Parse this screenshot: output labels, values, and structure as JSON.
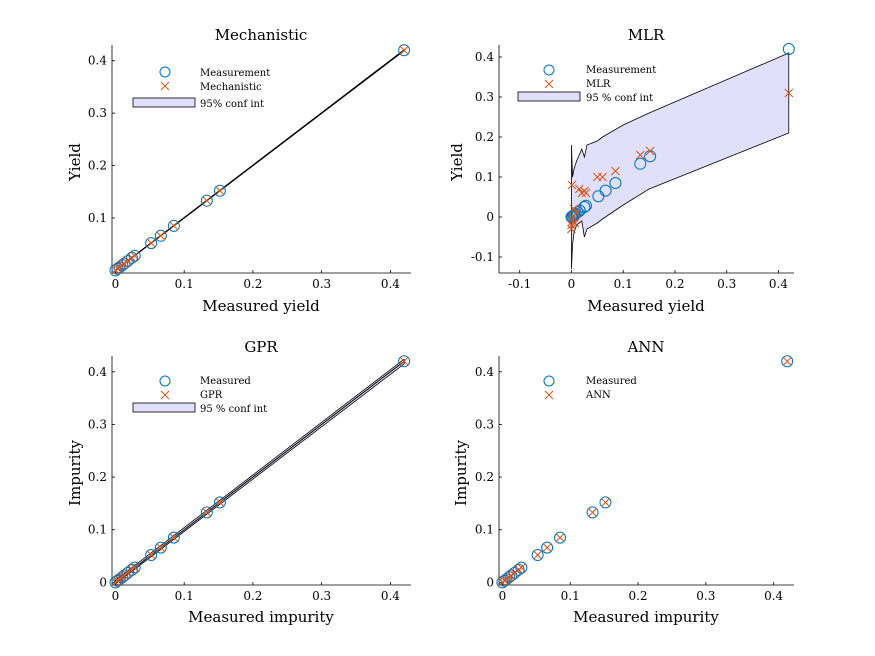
{
  "colors": {
    "measurement": "#0072BD",
    "prediction": "#D95319",
    "ci_fill": "#e0e0fa",
    "axis": "#000000"
  },
  "chart_data": [
    {
      "type": "scatter",
      "title": "Mechanistic",
      "xlabel": "Measured yield",
      "ylabel": "Yield",
      "xlim": [
        -0.005,
        0.43
      ],
      "ylim": [
        -0.005,
        0.43
      ],
      "xticks": [
        0,
        0.1,
        0.2,
        0.3,
        0.4
      ],
      "yticks": [
        0.1,
        0.2,
        0.3,
        0.4
      ],
      "xtick_labels": [
        "0",
        "0.1",
        "0.2",
        "0.3",
        "0.4"
      ],
      "ytick_labels": [
        "0.1",
        "0.2",
        "0.3",
        "0.4"
      ],
      "legend": {
        "placement": "top-left",
        "entries": [
          "Measurement",
          "Mechanistic",
          "95% conf int"
        ]
      },
      "series": [
        {
          "name": "Measurement",
          "marker": "circle",
          "x": [
            0,
            0.003,
            0.006,
            0.01,
            0.013,
            0.018,
            0.024,
            0.028,
            0.052,
            0.066,
            0.085,
            0.133,
            0.152,
            0.42
          ],
          "y": [
            0,
            0.003,
            0.006,
            0.01,
            0.013,
            0.018,
            0.024,
            0.028,
            0.052,
            0.066,
            0.085,
            0.133,
            0.152,
            0.42
          ]
        },
        {
          "name": "Mechanistic",
          "marker": "x",
          "x": [
            0,
            0.003,
            0.006,
            0.01,
            0.013,
            0.018,
            0.024,
            0.028,
            0.052,
            0.066,
            0.085,
            0.133,
            0.152,
            0.42
          ],
          "y": [
            0,
            0.003,
            0.006,
            0.01,
            0.013,
            0.018,
            0.024,
            0.028,
            0.052,
            0.066,
            0.085,
            0.133,
            0.152,
            0.42
          ]
        }
      ],
      "conf_int": {
        "x": [
          0,
          0.42
        ],
        "lower": [
          0,
          0.419
        ],
        "upper": [
          0.001,
          0.421
        ]
      }
    },
    {
      "type": "scatter",
      "title": "MLR",
      "xlabel": "Measured yield",
      "ylabel": "Yield",
      "xlim": [
        -0.14,
        0.43
      ],
      "ylim": [
        -0.14,
        0.43
      ],
      "xticks": [
        -0.1,
        0,
        0.1,
        0.2,
        0.3,
        0.4
      ],
      "yticks": [
        -0.1,
        0,
        0.1,
        0.2,
        0.3,
        0.4
      ],
      "xtick_labels": [
        "-0.1",
        "0",
        "0.1",
        "0.2",
        "0.3",
        "0.4"
      ],
      "ytick_labels": [
        "-0.1",
        "0",
        "0.1",
        "0.2",
        "0.3",
        "0.4"
      ],
      "legend": {
        "placement": "top-left",
        "entries": [
          "Measurement",
          "MLR",
          "95 % conf int"
        ]
      },
      "series": [
        {
          "name": "Measurement",
          "marker": "circle",
          "x": [
            0,
            0.002,
            0.004,
            0.006,
            0.008,
            0.012,
            0.016,
            0.025,
            0.028,
            0.052,
            0.066,
            0.085,
            0.133,
            0.152,
            0.42
          ],
          "y": [
            0,
            0.002,
            0.004,
            0.006,
            0.008,
            0.012,
            0.016,
            0.025,
            0.028,
            0.052,
            0.066,
            0.085,
            0.133,
            0.152,
            0.42
          ]
        },
        {
          "name": "MLR",
          "marker": "x",
          "x": [
            0,
            0,
            0.001,
            0.002,
            0.003,
            0.005,
            0.007,
            0.01,
            0.015,
            0.02,
            0.025,
            0.028,
            0.05,
            0.06,
            0.085,
            0.133,
            0.152,
            0.42
          ],
          "y": [
            -0.03,
            -0.02,
            0.08,
            -0.01,
            0.0,
            0.02,
            -0.015,
            0.01,
            0.07,
            0.06,
            0.065,
            0.06,
            0.1,
            0.1,
            0.115,
            0.155,
            0.165,
            0.31
          ]
        }
      ],
      "conf_int": {
        "x": [
          0,
          0.002,
          0.005,
          0.01,
          0.02,
          0.025,
          0.03,
          0.05,
          0.06,
          0.1,
          0.15,
          0.42
        ],
        "lower": [
          -0.13,
          -0.07,
          -0.04,
          -0.02,
          -0.01,
          -0.05,
          -0.03,
          -0.015,
          -0.005,
          0.03,
          0.07,
          0.21
        ],
        "upper": [
          0.18,
          0.1,
          0.12,
          0.14,
          0.17,
          0.15,
          0.18,
          0.19,
          0.2,
          0.23,
          0.26,
          0.41
        ]
      }
    },
    {
      "type": "scatter",
      "title": "GPR",
      "xlabel": "Measured impurity",
      "ylabel": "Impurity",
      "xlim": [
        -0.005,
        0.43
      ],
      "ylim": [
        -0.005,
        0.43
      ],
      "xticks": [
        0,
        0.1,
        0.2,
        0.3,
        0.4
      ],
      "yticks": [
        0,
        0.1,
        0.2,
        0.3,
        0.4
      ],
      "xtick_labels": [
        "0",
        "0.1",
        "0.2",
        "0.3",
        "0.4"
      ],
      "ytick_labels": [
        "0",
        "0.1",
        "0.2",
        "0.3",
        "0.4"
      ],
      "legend": {
        "placement": "top-left",
        "entries": [
          "Measured",
          "GPR",
          "95 % conf int"
        ]
      },
      "series": [
        {
          "name": "Measured",
          "marker": "circle",
          "x": [
            0,
            0.003,
            0.006,
            0.01,
            0.013,
            0.018,
            0.024,
            0.028,
            0.052,
            0.066,
            0.085,
            0.133,
            0.152,
            0.42
          ],
          "y": [
            0,
            0.003,
            0.006,
            0.01,
            0.013,
            0.018,
            0.024,
            0.028,
            0.052,
            0.066,
            0.085,
            0.133,
            0.152,
            0.42
          ]
        },
        {
          "name": "GPR",
          "marker": "x",
          "x": [
            0,
            0.003,
            0.006,
            0.01,
            0.013,
            0.018,
            0.024,
            0.028,
            0.052,
            0.066,
            0.085,
            0.133,
            0.152,
            0.42
          ],
          "y": [
            0,
            0.003,
            0.006,
            0.01,
            0.013,
            0.018,
            0.024,
            0.028,
            0.052,
            0.066,
            0.085,
            0.133,
            0.152,
            0.42
          ]
        }
      ],
      "conf_int": {
        "x": [
          0,
          0.42
        ],
        "lower": [
          -0.003,
          0.415
        ],
        "upper": [
          0.004,
          0.424
        ]
      }
    },
    {
      "type": "scatter",
      "title": "ANN",
      "xlabel": "Measured impurity",
      "ylabel": "Impurity",
      "xlim": [
        -0.005,
        0.43
      ],
      "ylim": [
        -0.005,
        0.43
      ],
      "xticks": [
        0,
        0.1,
        0.2,
        0.3,
        0.4
      ],
      "yticks": [
        0,
        0.1,
        0.2,
        0.3,
        0.4
      ],
      "xtick_labels": [
        "0",
        "0.1",
        "0.2",
        "0.3",
        "0.4"
      ],
      "ytick_labels": [
        "0",
        "0.1",
        "0.2",
        "0.3",
        "0.4"
      ],
      "legend": {
        "placement": "top-left",
        "entries": [
          "Measured",
          "ANN"
        ]
      },
      "series": [
        {
          "name": "Measured",
          "marker": "circle",
          "x": [
            0,
            0.003,
            0.006,
            0.01,
            0.013,
            0.018,
            0.024,
            0.028,
            0.052,
            0.066,
            0.085,
            0.133,
            0.152,
            0.42
          ],
          "y": [
            0,
            0.003,
            0.006,
            0.01,
            0.013,
            0.018,
            0.024,
            0.028,
            0.052,
            0.066,
            0.085,
            0.133,
            0.152,
            0.42
          ]
        },
        {
          "name": "ANN",
          "marker": "x",
          "x": [
            0,
            0.003,
            0.006,
            0.01,
            0.013,
            0.018,
            0.024,
            0.028,
            0.052,
            0.066,
            0.085,
            0.133,
            0.152,
            0.42
          ],
          "y": [
            0,
            0.003,
            0.006,
            0.01,
            0.013,
            0.018,
            0.024,
            0.028,
            0.052,
            0.066,
            0.085,
            0.133,
            0.152,
            0.42
          ]
        }
      ]
    }
  ]
}
